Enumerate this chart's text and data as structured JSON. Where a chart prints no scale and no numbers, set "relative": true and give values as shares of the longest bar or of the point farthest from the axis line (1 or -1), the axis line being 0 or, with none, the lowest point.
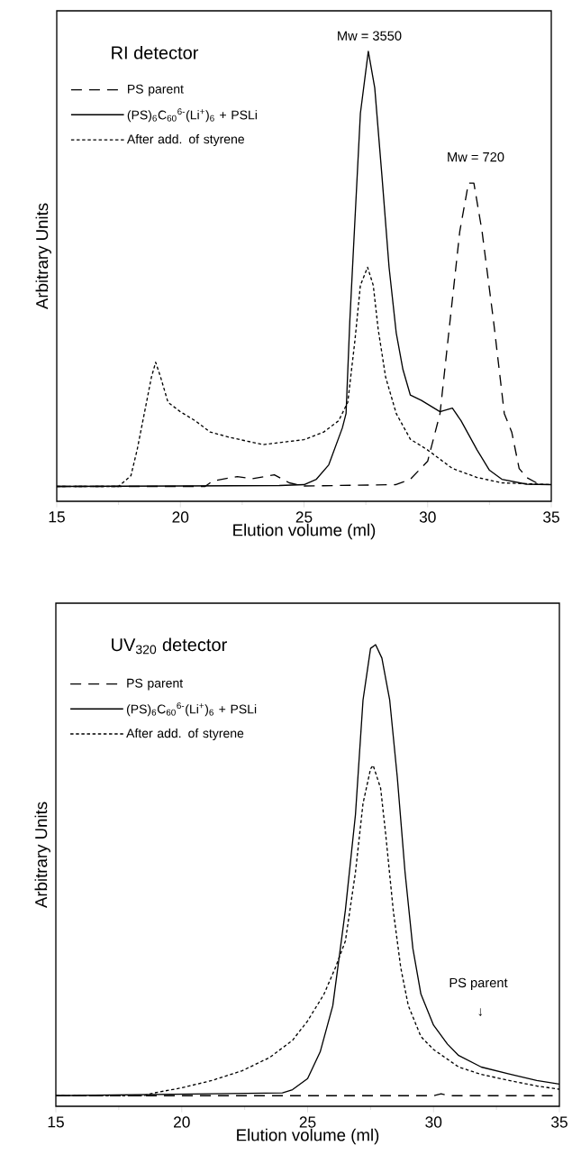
{
  "chart_data": [
    {
      "type": "line",
      "title": "RI detector",
      "xlabel": "Elution volume (ml)",
      "ylabel": "Arbitrary Units",
      "relative": true,
      "xlim": [
        15,
        35
      ],
      "xticks": [
        15,
        20,
        25,
        30,
        35
      ],
      "legend": "top left",
      "annotations": [
        "Mw = 3550",
        "Mw = 720"
      ],
      "series": [
        {
          "name": "PS parent",
          "color": "#000000",
          "line_style": "dashed",
          "x": [
            15,
            21,
            21.3,
            22.3,
            22.9,
            23.8,
            24.4,
            25,
            28.7,
            29.3,
            30,
            30.5,
            30.9,
            31.3,
            31.65,
            31.87,
            32.2,
            32.67,
            33.1,
            33.4,
            33.7,
            34,
            34.4
          ],
          "values": [
            0.033,
            0.033,
            0.045,
            0.055,
            0.05,
            0.059,
            0.041,
            0.034,
            0.037,
            0.049,
            0.089,
            0.195,
            0.398,
            0.6,
            0.707,
            0.707,
            0.6,
            0.398,
            0.195,
            0.154,
            0.073,
            0.053,
            0.041
          ]
        },
        {
          "name": "(PS)$_{6}$C$_{60}$$^{6-}$(Li$^{+}$)$_{6}$ + PSLi",
          "color": "#000000",
          "line_style": "solid",
          "x": [
            15,
            20,
            24,
            25,
            25.5,
            26,
            26.55,
            26.7,
            26.85,
            27,
            27.28,
            27.6,
            27.86,
            28.15,
            28.44,
            28.73,
            29,
            29.3,
            29.75,
            30.5,
            31,
            31.35,
            32,
            32.5,
            33,
            34,
            35
          ],
          "values": [
            0.033,
            0.034,
            0.035,
            0.037,
            0.049,
            0.081,
            0.163,
            0.195,
            0.398,
            0.561,
            0.862,
            1,
            0.919,
            0.724,
            0.52,
            0.374,
            0.293,
            0.236,
            0.224,
            0.199,
            0.207,
            0.179,
            0.114,
            0.069,
            0.049,
            0.038,
            0.037
          ]
        },
        {
          "name": "After add. of styrene",
          "color": "#000000",
          "line_style": "dotted",
          "x": [
            15,
            17.5,
            18,
            18.25,
            18.54,
            18.83,
            19,
            19.2,
            19.5,
            20,
            20.6,
            21.2,
            22,
            23.35,
            25,
            25.8,
            26.4,
            26.77,
            27.06,
            27.28,
            27.57,
            27.8,
            28,
            28.3,
            28.73,
            29.3,
            30,
            31,
            32,
            33,
            35
          ],
          "values": [
            0.033,
            0.033,
            0.057,
            0.114,
            0.195,
            0.276,
            0.309,
            0.276,
            0.22,
            0.199,
            0.179,
            0.154,
            0.142,
            0.126,
            0.137,
            0.154,
            0.179,
            0.22,
            0.358,
            0.48,
            0.52,
            0.48,
            0.382,
            0.276,
            0.195,
            0.138,
            0.114,
            0.073,
            0.053,
            0.041,
            0.037
          ]
        }
      ]
    },
    {
      "type": "line",
      "title": "UV$_{320}$ detector",
      "xlabel": "Elution volume (ml)",
      "ylabel": "Arbitrary Units",
      "relative": true,
      "xlim": [
        15,
        35
      ],
      "xticks": [
        15,
        20,
        25,
        30,
        35
      ],
      "legend": "top left",
      "annotations": [
        "PS parent",
        "↓"
      ],
      "series": [
        {
          "name": "PS parent",
          "color": "#000000",
          "line_style": "dashed",
          "x": [
            15,
            30,
            30.3,
            30.6,
            35
          ],
          "values": [
            0.023,
            0.023,
            0.027,
            0.023,
            0.023
          ]
        },
        {
          "name": "(PS)$_{6}$C$_{60}$$^{6-}$(Li$^{+}$)$_{6}$ + PSLi",
          "color": "#000000",
          "line_style": "solid",
          "x": [
            15,
            24,
            24.4,
            25,
            25.5,
            26,
            26.5,
            26.9,
            27.2,
            27.5,
            27.7,
            27.95,
            28.26,
            28.56,
            28.87,
            29.18,
            29.5,
            30,
            30.55,
            31,
            31.9,
            33,
            34.1,
            35
          ],
          "values": [
            0.023,
            0.029,
            0.036,
            0.06,
            0.118,
            0.218,
            0.425,
            0.632,
            0.88,
            0.992,
            1,
            0.971,
            0.88,
            0.714,
            0.507,
            0.342,
            0.243,
            0.176,
            0.135,
            0.11,
            0.085,
            0.07,
            0.056,
            0.048
          ]
        },
        {
          "name": "After add. of styrene",
          "color": "#000000",
          "line_style": "dotted",
          "x": [
            15,
            18.5,
            18.9,
            20,
            21.2,
            22.4,
            23.5,
            24.4,
            25,
            25.65,
            26.1,
            26.5,
            26.9,
            27.2,
            27.5,
            27.6,
            27.9,
            28.1,
            28.4,
            28.7,
            29,
            29.5,
            30,
            31,
            31.9,
            33,
            34.1,
            35
          ],
          "values": [
            0.023,
            0.023,
            0.029,
            0.04,
            0.056,
            0.077,
            0.106,
            0.143,
            0.185,
            0.243,
            0.3,
            0.358,
            0.507,
            0.656,
            0.731,
            0.739,
            0.689,
            0.59,
            0.425,
            0.3,
            0.218,
            0.151,
            0.123,
            0.085,
            0.069,
            0.056,
            0.044,
            0.037
          ]
        }
      ]
    }
  ]
}
